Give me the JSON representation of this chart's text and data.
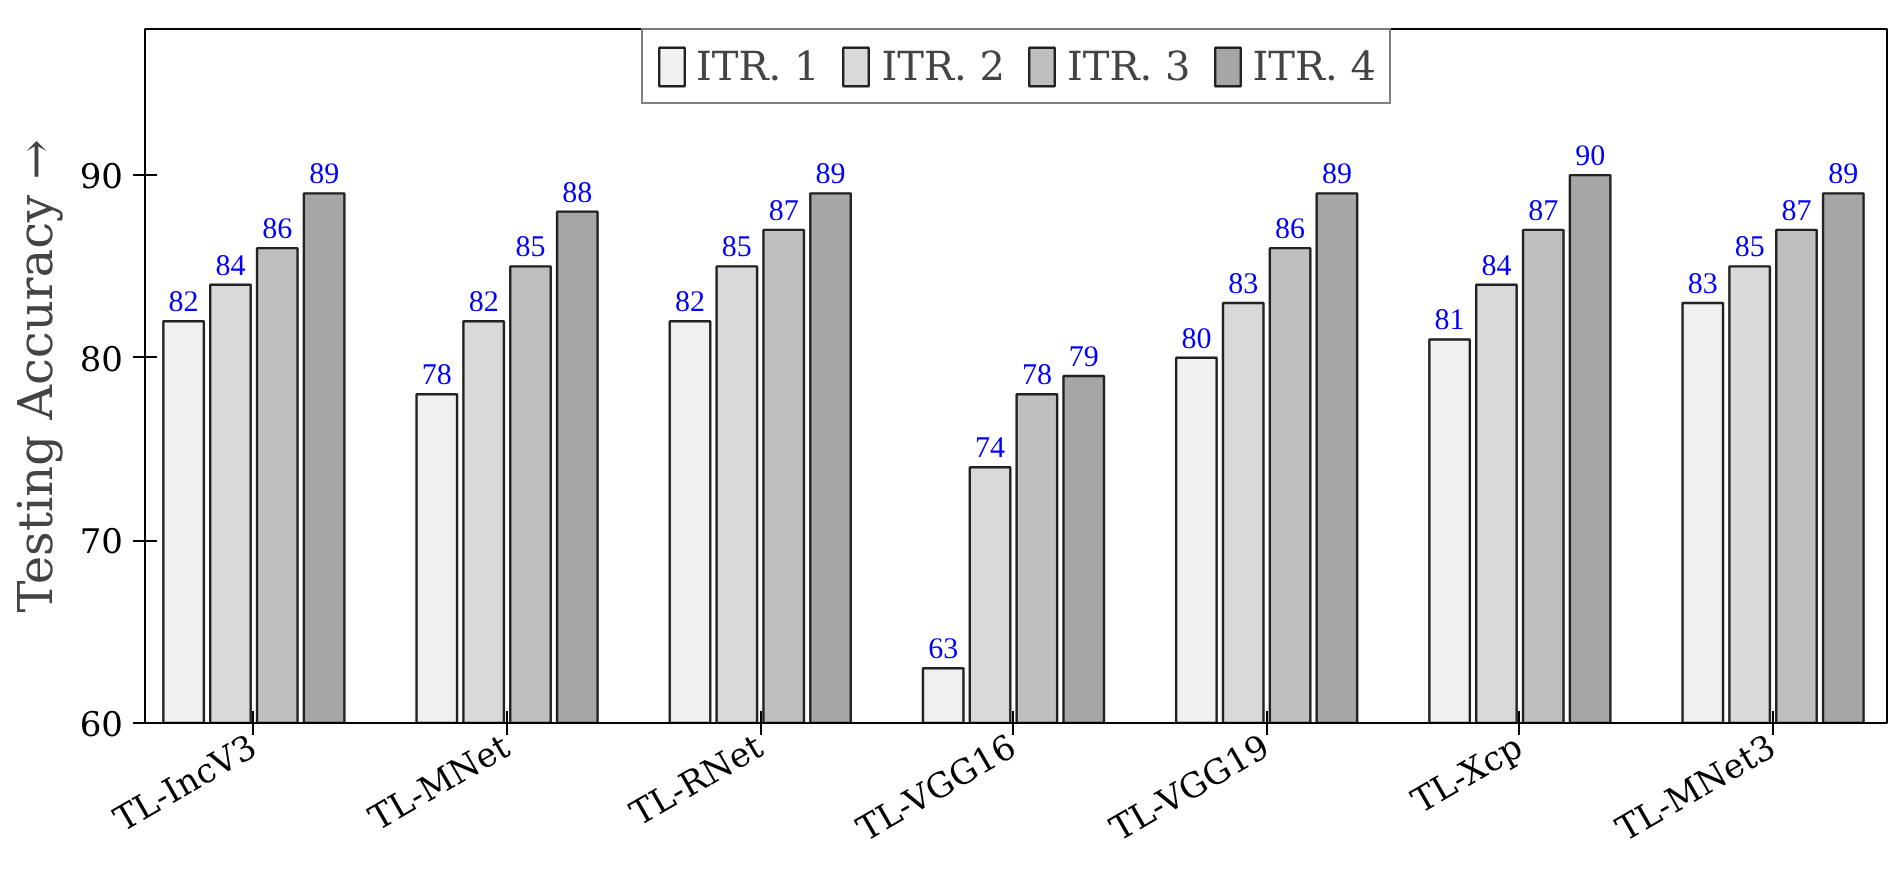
{
  "chart_data": {
    "type": "bar",
    "ylabel": "Testing Accuracy →",
    "categories": [
      "TL-IncV3",
      "TL-MNet",
      "TL-RNet",
      "TL-VGG16",
      "TL-VGG19",
      "TL-Xcp",
      "TL-MNet3"
    ],
    "series": [
      {
        "name": "ITR. 1",
        "color": "#f0f0f0",
        "values": [
          82,
          78,
          82,
          63,
          80,
          81,
          83
        ]
      },
      {
        "name": "ITR. 2",
        "color": "#d9d9d9",
        "values": [
          84,
          82,
          85,
          74,
          83,
          84,
          85
        ]
      },
      {
        "name": "ITR. 3",
        "color": "#bfbfbf",
        "values": [
          86,
          85,
          87,
          78,
          86,
          87,
          87
        ]
      },
      {
        "name": "ITR. 4",
        "color": "#a6a6a6",
        "values": [
          89,
          88,
          89,
          79,
          89,
          90,
          89
        ]
      }
    ],
    "ylim": [
      60,
      98
    ],
    "yticks": [
      60,
      70,
      80,
      90
    ],
    "grid": false,
    "legend": "top",
    "data_labels": true
  }
}
